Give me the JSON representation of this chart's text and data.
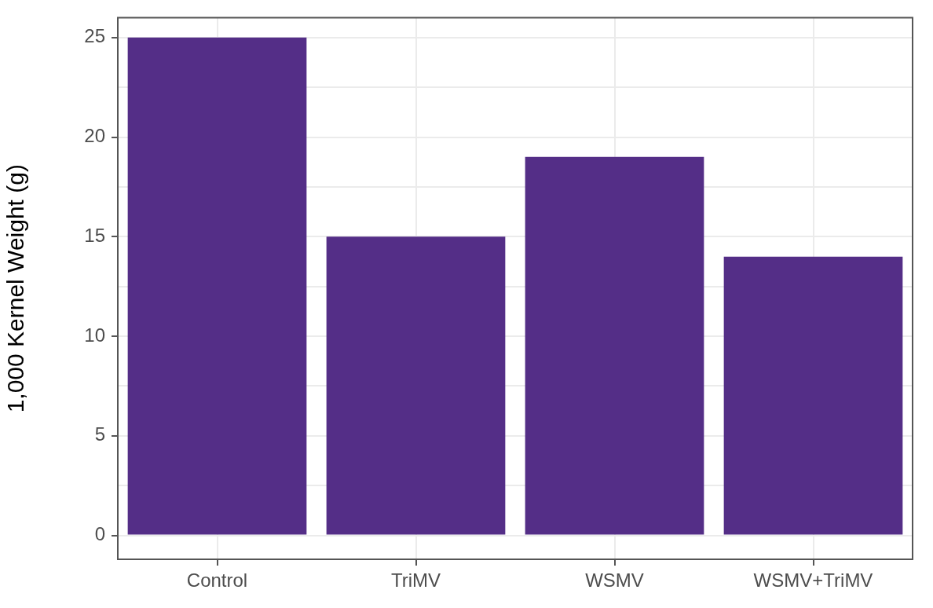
{
  "chart_data": {
    "type": "bar",
    "ylabel": "1,000 Kernel Weight (g)",
    "categories": [
      "Control",
      "TriMV",
      "WSMV",
      "WSMV+TriMV"
    ],
    "values": [
      25,
      15,
      19,
      14
    ],
    "color": "#542e87",
    "ylim": [
      -1.2,
      26
    ],
    "yticks": [
      0,
      {
        "value": 2.5,
        "label": null
      },
      5,
      {
        "value": 7.5,
        "label": null
      },
      10,
      {
        "value": 12.5,
        "label": null
      },
      15,
      {
        "value": 17.5,
        "label": null
      },
      20,
      {
        "value": 22.5,
        "label": null
      },
      25
    ],
    "grid": true
  }
}
